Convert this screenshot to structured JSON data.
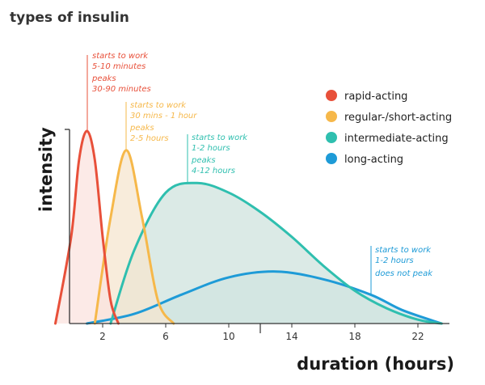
{
  "chart_data": {
    "type": "area",
    "title": "types of insulin",
    "xlabel": "duration (hours)",
    "ylabel": "intensity",
    "xlim": [
      -2,
      24
    ],
    "ylim": [
      0,
      1
    ],
    "x_ticks": [
      2,
      6,
      10,
      14,
      18,
      22
    ],
    "grid": false,
    "legend_position": "top-right",
    "series": [
      {
        "name": "rapid-acting",
        "color": "#e8503a",
        "fill": "#fbe3df",
        "x": [
          -1,
          0,
          0.5,
          1,
          1.5,
          2,
          2.5,
          3
        ],
        "y": [
          0,
          0.45,
          0.85,
          1.0,
          0.85,
          0.45,
          0.12,
          0
        ],
        "notes": [
          "starts to work",
          "5-10 minutes",
          "peaks",
          "30-90 minutes"
        ]
      },
      {
        "name": "regular-/short-acting",
        "color": "#f6b84a",
        "fill": "#f5e6cf",
        "x": [
          1.5,
          2.5,
          3.5,
          4.5,
          5.5,
          6.5
        ],
        "y": [
          0,
          0.55,
          0.9,
          0.55,
          0.12,
          0
        ],
        "notes": [
          "starts to work",
          "30 mins - 1 hour",
          "peaks",
          "2-5 hours"
        ]
      },
      {
        "name": "intermediate-acting",
        "color": "#2fbfaf",
        "fill": "#cfe3de",
        "x": [
          2.5,
          4,
          6,
          8,
          10,
          12,
          14,
          16,
          18,
          20,
          22,
          23.5
        ],
        "y": [
          0,
          0.38,
          0.68,
          0.73,
          0.68,
          0.58,
          0.45,
          0.3,
          0.17,
          0.08,
          0.02,
          0
        ],
        "notes": [
          "starts to work",
          "1-2 hours",
          "peaks",
          "4-12 hours"
        ]
      },
      {
        "name": "long-acting",
        "color": "#1e9bd7",
        "fill": "#d4e7e9",
        "x": [
          1,
          4,
          7,
          10,
          13,
          16,
          19,
          21,
          23.5
        ],
        "y": [
          0,
          0.05,
          0.15,
          0.24,
          0.27,
          0.23,
          0.15,
          0.07,
          0
        ],
        "notes": [
          "starts to work",
          "1-2 hours",
          "does not peak"
        ]
      }
    ]
  }
}
